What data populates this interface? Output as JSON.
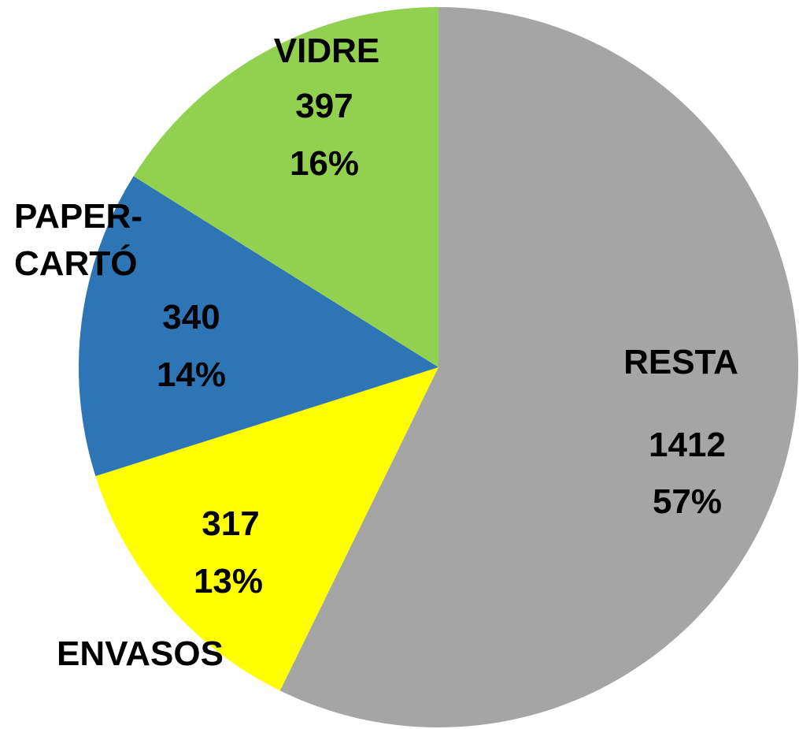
{
  "chart_data": {
    "type": "pie",
    "categories": [
      "RESTA",
      "ENVASOS",
      "PAPER-CARTÓ",
      "VIDRE"
    ],
    "values": [
      1412,
      317,
      340,
      397
    ],
    "percent_labels": [
      "57%",
      "13%",
      "14%",
      "16%"
    ],
    "colors": [
      "#a5a5a5",
      "#ffff00",
      "#2e75b6",
      "#92d050"
    ]
  }
}
